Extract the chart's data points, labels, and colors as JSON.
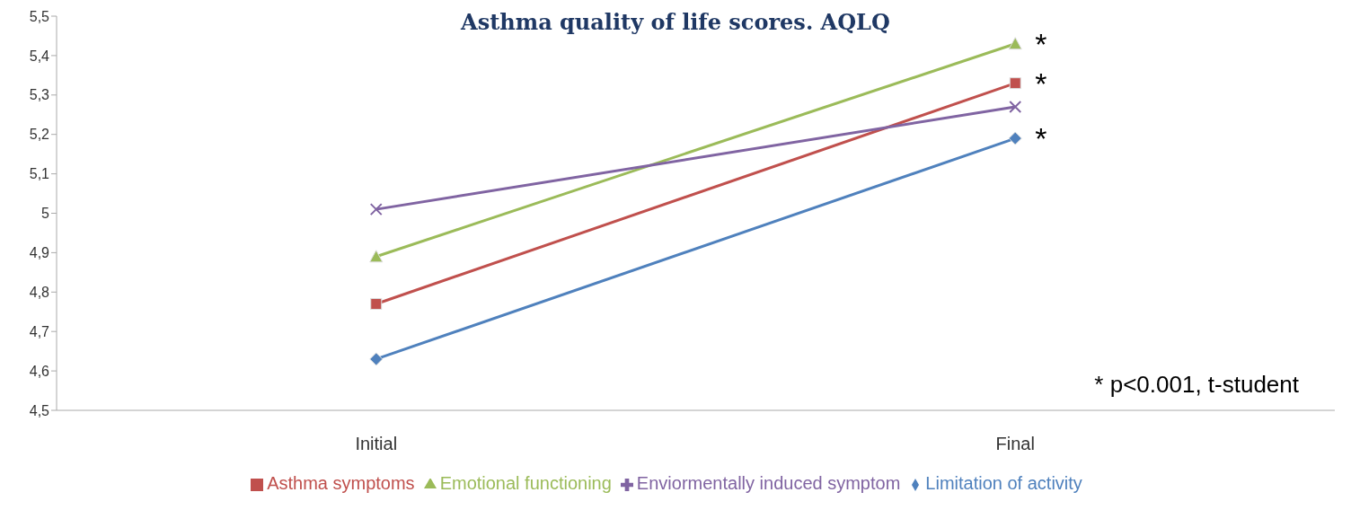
{
  "chart_data": {
    "type": "line",
    "title": "Asthma quality of life scores. AQLQ",
    "categories": [
      "Initial",
      "Final"
    ],
    "series": [
      {
        "name": "Limitation of activity",
        "color": "#4f81bd",
        "marker": "diamond",
        "values": [
          4.63,
          5.19
        ]
      },
      {
        "name": "Asthma symptoms",
        "color": "#c0504d",
        "marker": "square",
        "values": [
          4.77,
          5.33
        ]
      },
      {
        "name": "Emotional functioning",
        "color": "#9bbb59",
        "marker": "triangle",
        "values": [
          4.89,
          5.43
        ]
      },
      {
        "name": "Enviormentally induced symptom",
        "color": "#8064a2",
        "marker": "cross",
        "values": [
          5.01,
          5.27
        ]
      }
    ],
    "ylim": [
      4.5,
      5.5
    ],
    "yticks": [
      {
        "value": 4.5,
        "label": "4,5"
      },
      {
        "value": 4.6,
        "label": "4,6"
      },
      {
        "value": 4.7,
        "label": "4,7"
      },
      {
        "value": 4.8,
        "label": "4,8"
      },
      {
        "value": 4.9,
        "label": "4,9"
      },
      5,
      {
        "value": 5.1,
        "label": "5,1"
      },
      {
        "value": 5.2,
        "label": "5,2"
      },
      {
        "value": 5.3,
        "label": "5,3"
      },
      {
        "value": 5.4,
        "label": "5,4"
      },
      {
        "value": 5.5,
        "label": "5,5"
      }
    ],
    "grid": false,
    "legend": "bottom",
    "annotations": [
      {
        "text": "*",
        "x": "Final",
        "y": 5.43
      },
      {
        "text": "*",
        "x": "Final",
        "y": 5.33
      },
      {
        "text": "*",
        "x": "Final",
        "y": 5.19
      },
      "* p<0.001, t-student"
    ]
  }
}
